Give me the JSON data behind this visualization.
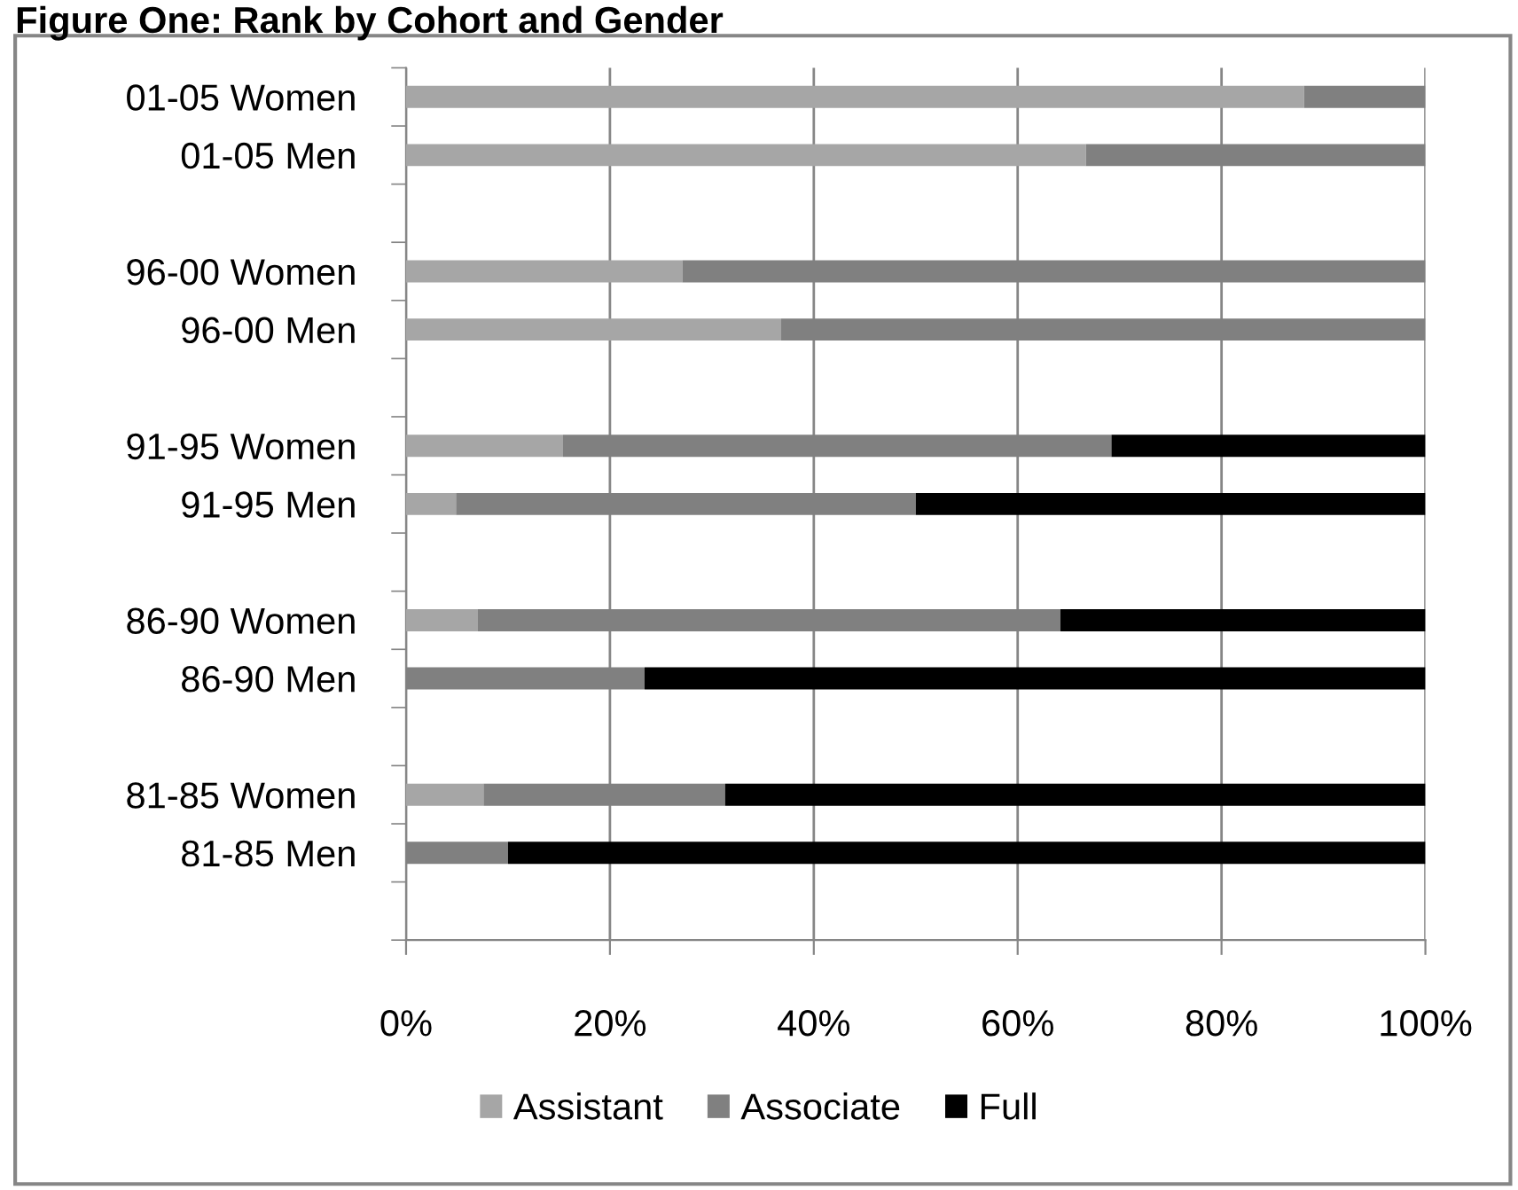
{
  "chart_data": {
    "type": "bar",
    "orientation": "horizontal",
    "stacked": true,
    "title": "Figure One: Rank by Cohort and Gender",
    "categories": [
      "01-05 Women",
      "01-05 Men",
      null,
      "96-00 Women",
      "96-00 Men",
      null,
      "91-95 Women",
      "91-95 Men",
      null,
      "86-90 Women",
      "86-90 Men",
      null,
      "81-85 Women",
      "81-85 Men",
      null
    ],
    "series": [
      {
        "name": "Assistant",
        "color": "#a6a6a6",
        "values": [
          88.1,
          66.7,
          null,
          27.1,
          36.8,
          null,
          15.4,
          4.9,
          null,
          7.0,
          0,
          null,
          7.6,
          0,
          null
        ]
      },
      {
        "name": "Associate",
        "color": "#808080",
        "values": [
          11.9,
          33.3,
          null,
          72.9,
          63.2,
          null,
          53.8,
          45.1,
          null,
          57.2,
          23.4,
          null,
          23.7,
          10.0,
          null
        ]
      },
      {
        "name": "Full",
        "color": "#000000",
        "values": [
          0,
          0,
          null,
          0,
          0,
          null,
          30.8,
          50.0,
          null,
          35.8,
          76.6,
          null,
          68.7,
          90.0,
          null
        ]
      }
    ],
    "xlim": [
      0,
      100
    ],
    "xticks": [
      {
        "value": 0,
        "label": "0%"
      },
      {
        "value": 20,
        "label": "20%"
      },
      {
        "value": 40,
        "label": "40%"
      },
      {
        "value": 60,
        "label": "60%"
      },
      {
        "value": 80,
        "label": "80%"
      },
      {
        "value": 100,
        "label": "100%"
      }
    ],
    "grid": "x",
    "legend": "bottom"
  }
}
